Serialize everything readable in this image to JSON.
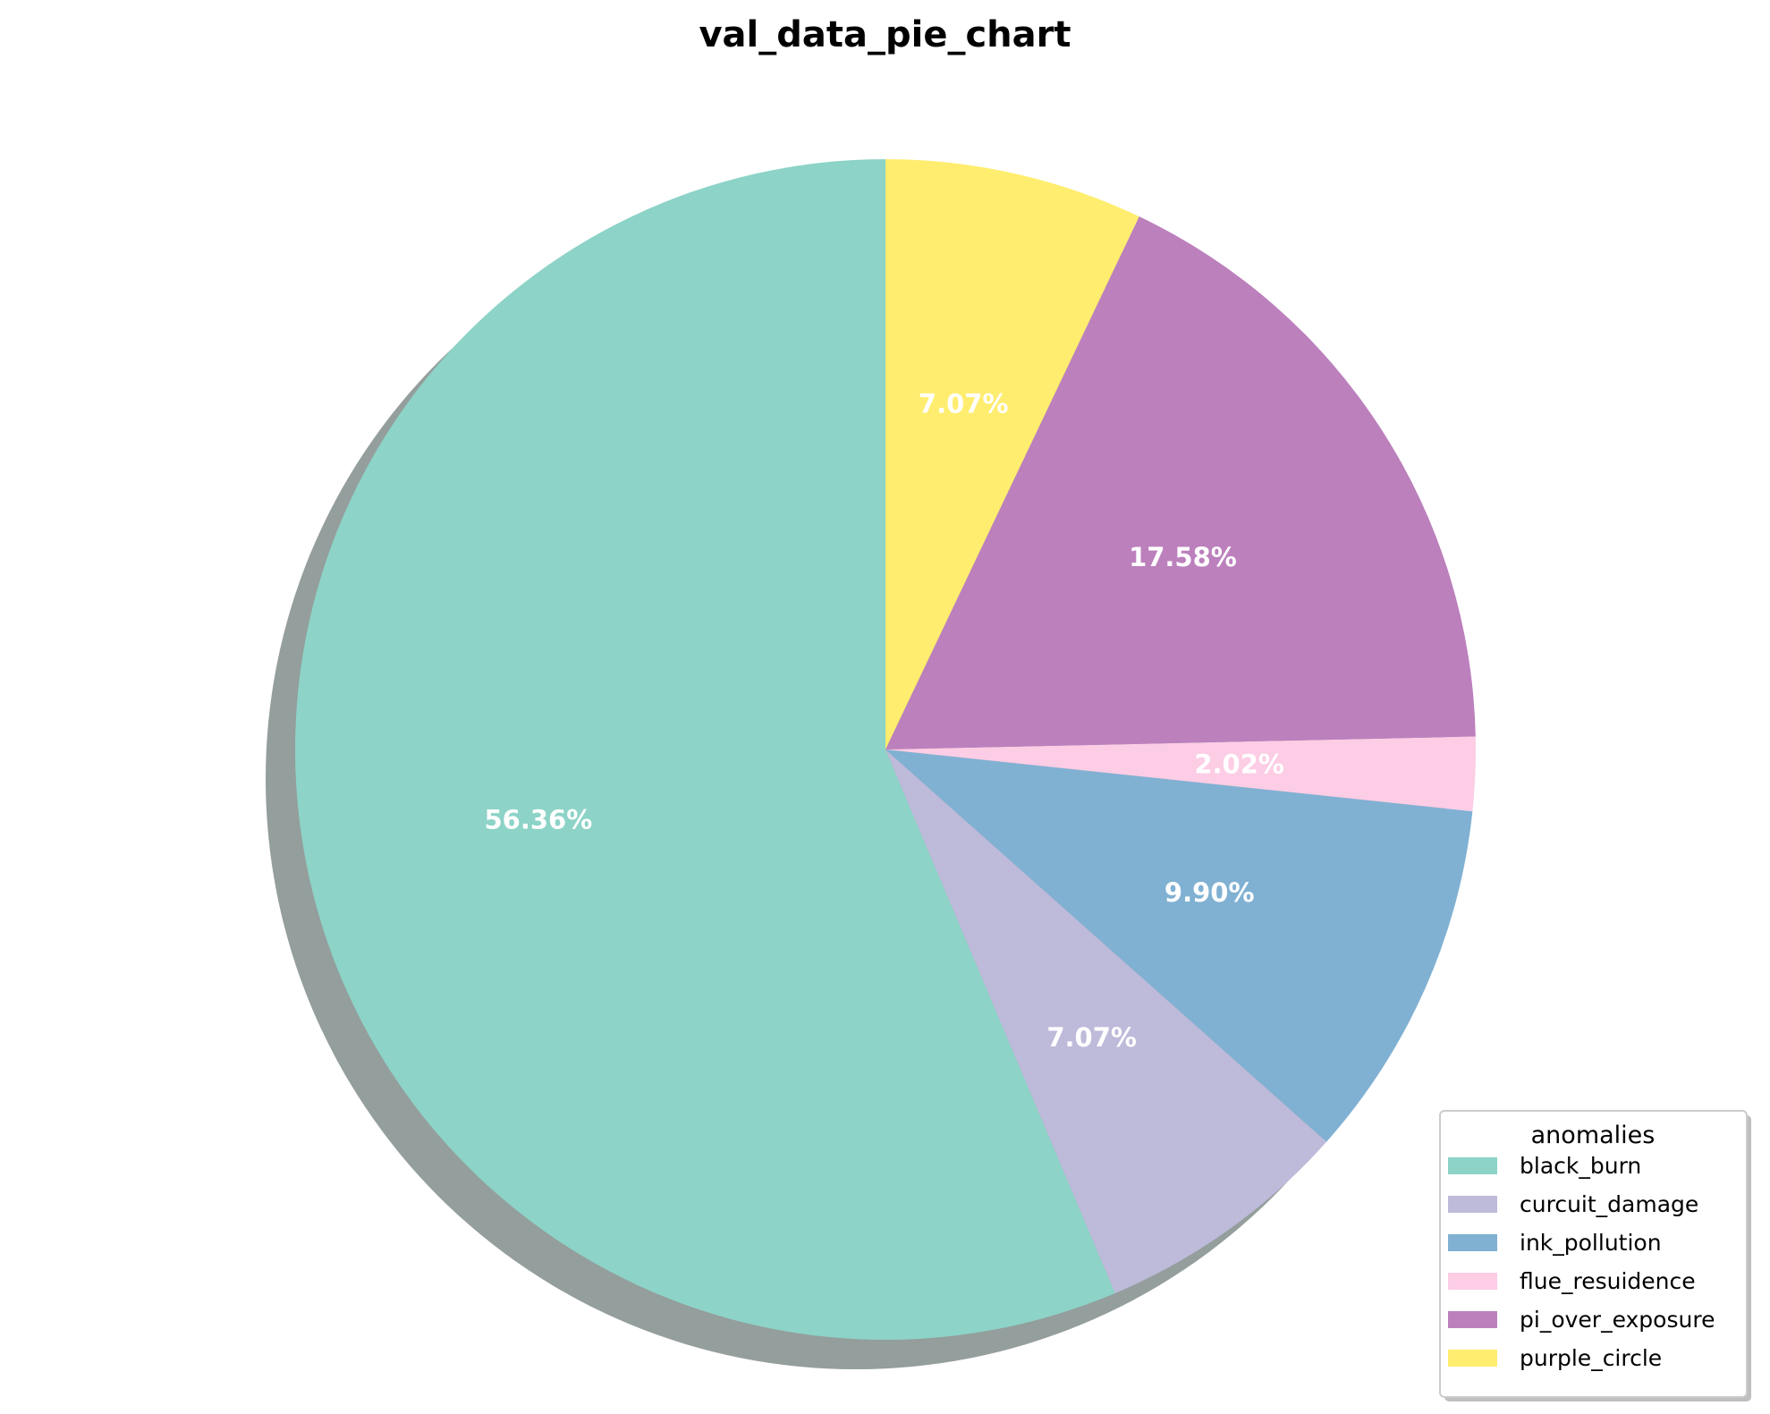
{
  "chart_data": {
    "type": "pie",
    "title": "val_data_pie_chart",
    "legend_title": "anomalies",
    "legend_position": "bottom-right",
    "shadow": true,
    "start_angle_deg": 90,
    "direction": "counterclockwise",
    "slices": [
      {
        "label": "black_burn",
        "value": 56.36,
        "display": "56.36%",
        "color": "#8dd3c7"
      },
      {
        "label": "curcuit_damage",
        "value": 7.07,
        "display": "7.07%",
        "color": "#bebada"
      },
      {
        "label": "ink_pollution",
        "value": 9.9,
        "display": "9.90%",
        "color": "#80b1d3"
      },
      {
        "label": "flue_resuidence",
        "value": 2.02,
        "display": "2.02%",
        "color": "#fccde5"
      },
      {
        "label": "pi_over_exposure",
        "value": 17.58,
        "display": "17.58%",
        "color": "#bc80bd"
      },
      {
        "label": "purple_circle",
        "value": 7.07,
        "display": "7.07%",
        "color": "#ffed6f"
      }
    ]
  }
}
